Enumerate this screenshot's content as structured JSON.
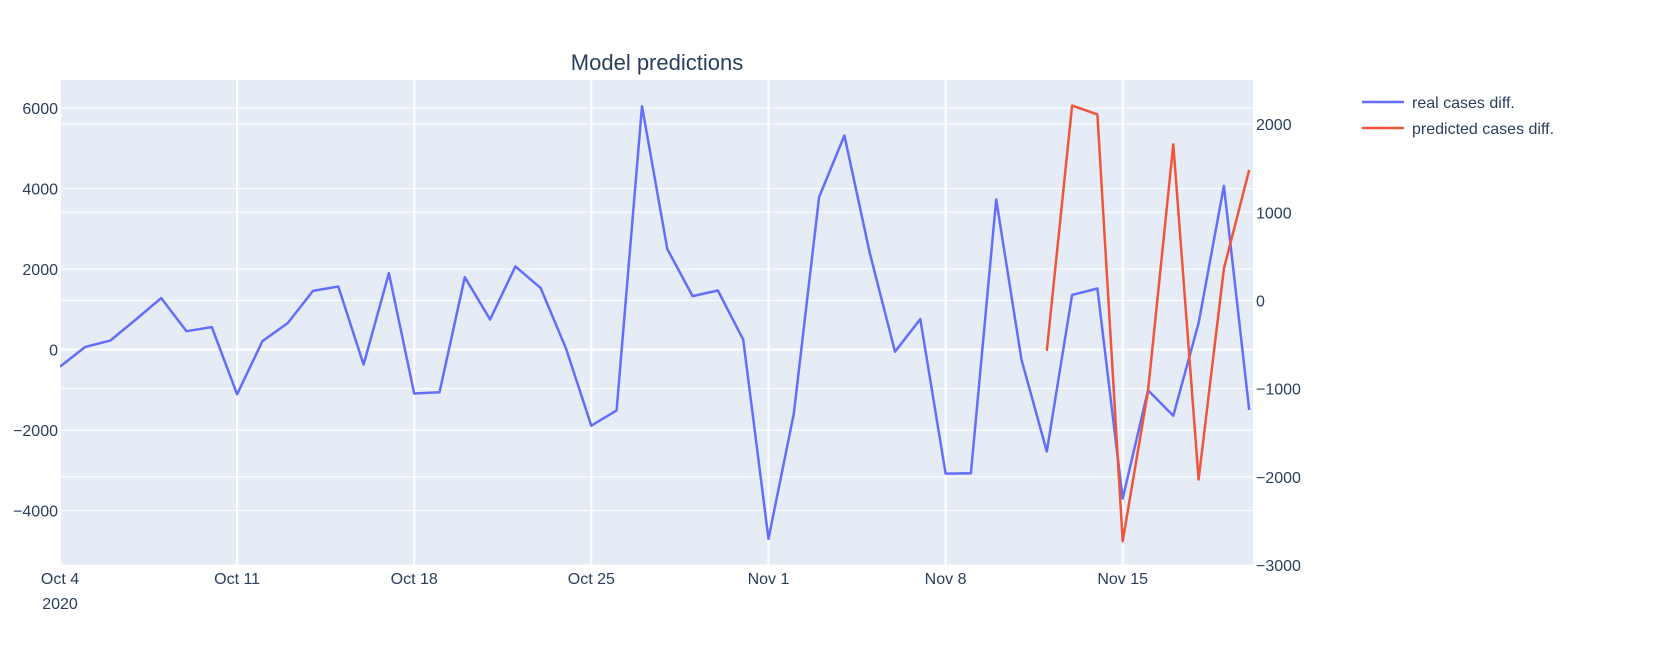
{
  "chart_data": {
    "type": "line",
    "title": "Model predictions",
    "x_start_date": "2020-10-04",
    "x_dates": [
      "2020-10-04",
      "2020-10-05",
      "2020-10-06",
      "2020-10-07",
      "2020-10-08",
      "2020-10-09",
      "2020-10-10",
      "2020-10-11",
      "2020-10-12",
      "2020-10-13",
      "2020-10-14",
      "2020-10-15",
      "2020-10-16",
      "2020-10-17",
      "2020-10-18",
      "2020-10-19",
      "2020-10-20",
      "2020-10-21",
      "2020-10-22",
      "2020-10-23",
      "2020-10-24",
      "2020-10-25",
      "2020-10-26",
      "2020-10-27",
      "2020-10-28",
      "2020-10-29",
      "2020-10-30",
      "2020-10-31",
      "2020-11-01",
      "2020-11-02",
      "2020-11-03",
      "2020-11-04",
      "2020-11-05",
      "2020-11-06",
      "2020-11-07",
      "2020-11-08",
      "2020-11-09",
      "2020-11-10",
      "2020-11-11",
      "2020-11-12",
      "2020-11-13",
      "2020-11-14",
      "2020-11-15",
      "2020-11-16",
      "2020-11-17",
      "2020-11-18",
      "2020-11-19",
      "2020-11-20",
      "2020-11-21",
      "2020-11-22"
    ],
    "x_tick_labels": [
      "Oct 4",
      "Oct 11",
      "Oct 18",
      "Oct 25",
      "Nov 1",
      "Nov 8",
      "Nov 15"
    ],
    "x_year_label": "2020",
    "y_left": {
      "ticks": [
        6000,
        4000,
        2000,
        0,
        -2000,
        -4000
      ],
      "range": [
        -5350,
        6700
      ]
    },
    "y_right": {
      "ticks": [
        2000,
        1000,
        0,
        -1000,
        -2000,
        -3000
      ],
      "range": [
        -3000,
        2500
      ]
    },
    "series": [
      {
        "name": "real cases diff.",
        "color": "#636efa",
        "axis": "left",
        "values": [
          -420,
          70,
          230,
          750,
          1280,
          460,
          560,
          -1110,
          210,
          660,
          1460,
          1570,
          -370,
          1900,
          -1090,
          -1060,
          1800,
          750,
          2070,
          1530,
          30,
          -1890,
          -1510,
          6050,
          2500,
          1330,
          1470,
          250,
          -4700,
          -1590,
          3790,
          5320,
          2410,
          -50,
          760,
          -3080,
          -3070,
          3730,
          -250,
          -2530,
          1360,
          1520,
          -3700,
          -1010,
          -1640,
          660,
          4070,
          -1500
        ]
      },
      {
        "name": "predicted cases diff.",
        "color": "#ef553b",
        "axis": "right",
        "x_start_index": 39,
        "values": [
          -570,
          2210,
          2110,
          -2730,
          -1030,
          1770,
          -2030,
          360,
          1480
        ]
      }
    ],
    "grid": true,
    "legend_position": "top-right"
  }
}
